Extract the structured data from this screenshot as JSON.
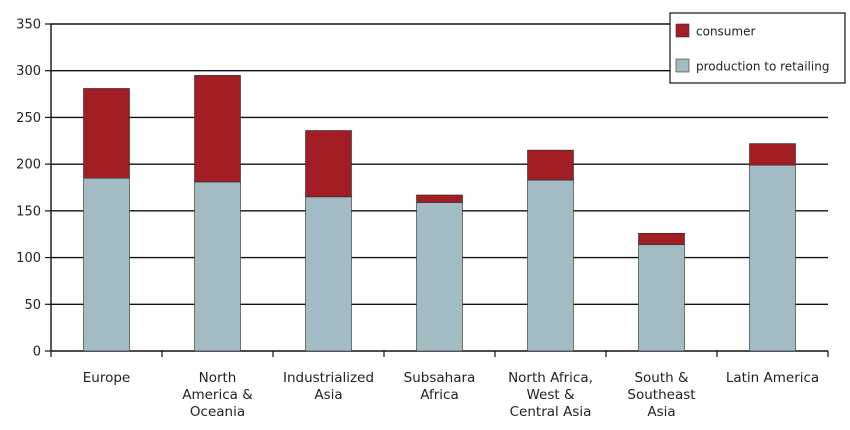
{
  "chart_data": {
    "type": "bar",
    "stacked": true,
    "title": "",
    "xlabel": "",
    "ylabel": "",
    "ylim": [
      0,
      350
    ],
    "yticks": [
      0,
      50,
      100,
      150,
      200,
      250,
      300,
      350
    ],
    "grid": true,
    "legend_position": "top-right",
    "categories": [
      [
        "Europe"
      ],
      [
        "North",
        "America &",
        "Oceania"
      ],
      [
        "Industrialized",
        "Asia"
      ],
      [
        "Subsahara",
        "Africa"
      ],
      [
        "North Africa,",
        "West &",
        "Central Asia"
      ],
      [
        "South &",
        "Southeast",
        "Asia"
      ],
      [
        "Latin America"
      ]
    ],
    "series": [
      {
        "name": "production to retailing",
        "color": "#a3bcc4",
        "values": [
          185,
          181,
          165,
          159,
          183,
          114,
          199
        ]
      },
      {
        "name": "consumer",
        "color": "#a31e24",
        "values": [
          96,
          114,
          71,
          8,
          32,
          12,
          23
        ]
      }
    ],
    "legend_order": [
      "consumer",
      "production to retailing"
    ]
  }
}
